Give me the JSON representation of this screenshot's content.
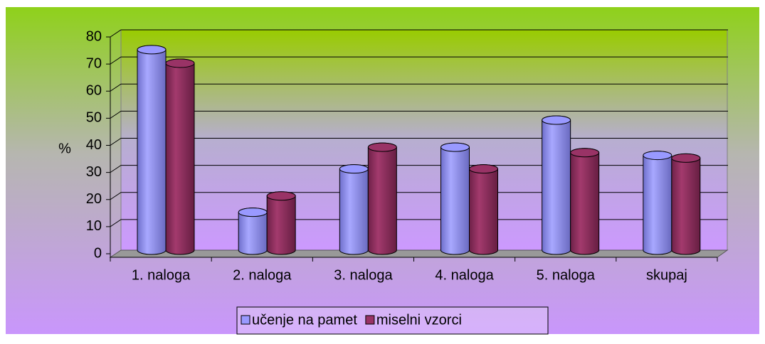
{
  "chart_data": {
    "type": "bar",
    "ylabel": "%",
    "categories": [
      "1. naloga",
      "2. naloga",
      "3. naloga",
      "4. naloga",
      "5. naloga",
      "skupaj"
    ],
    "series": [
      {
        "name": "učenje na pamet",
        "color": "#9999ff",
        "values": [
          74,
          14,
          30,
          38,
          48,
          35
        ]
      },
      {
        "name": "miselni vzorci",
        "color": "#993366",
        "values": [
          69,
          20,
          38,
          30,
          36,
          34
        ]
      }
    ],
    "ylim": [
      0,
      80
    ],
    "yticks": [
      0,
      10,
      20,
      30,
      40,
      50,
      60,
      70,
      80
    ],
    "grid": true,
    "legend": "bottom"
  }
}
